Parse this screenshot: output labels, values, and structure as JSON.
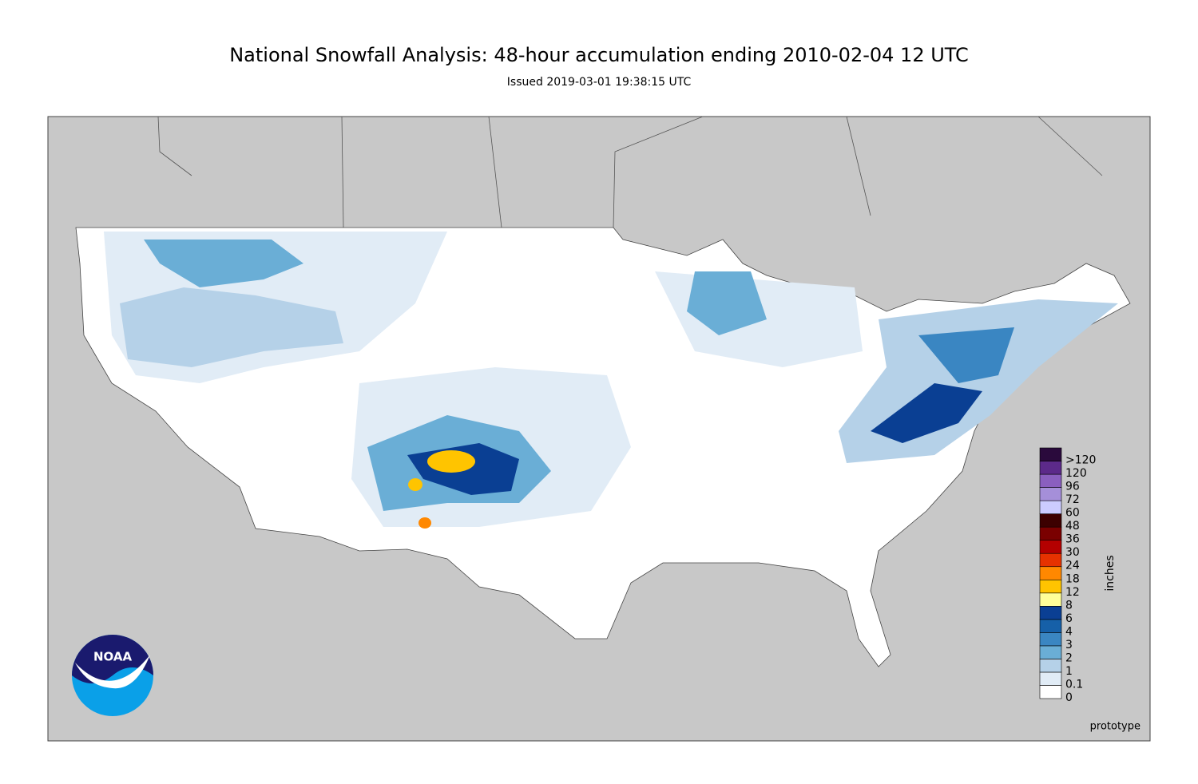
{
  "header": {
    "title": "National Snowfall Analysis: 48-hour accumulation ending 2010-02-04 12 UTC",
    "subtitle": "Issued 2019-03-01 19:38:15 UTC"
  },
  "legend": {
    "unit": "inches",
    "labels": [
      "0",
      "0.1",
      "1",
      "2",
      "3",
      "4",
      "6",
      "8",
      "12",
      "18",
      "24",
      "30",
      "36",
      "48",
      "60",
      "72",
      "96",
      "120",
      ">120"
    ],
    "colors": [
      "#ffffff",
      "#e1ecf6",
      "#b5d1e8",
      "#6aaed6",
      "#3a86c2",
      "#1660a8",
      "#0a3f93",
      "#ffff99",
      "#ffc400",
      "#ff8800",
      "#e63200",
      "#b40000",
      "#7a0000",
      "#3c0000",
      "#ccccff",
      "#a58fd9",
      "#8a5fbf",
      "#5c2a8a",
      "#2a0a3c"
    ]
  },
  "map": {
    "note": "prototype",
    "logo": "NOAA"
  }
}
